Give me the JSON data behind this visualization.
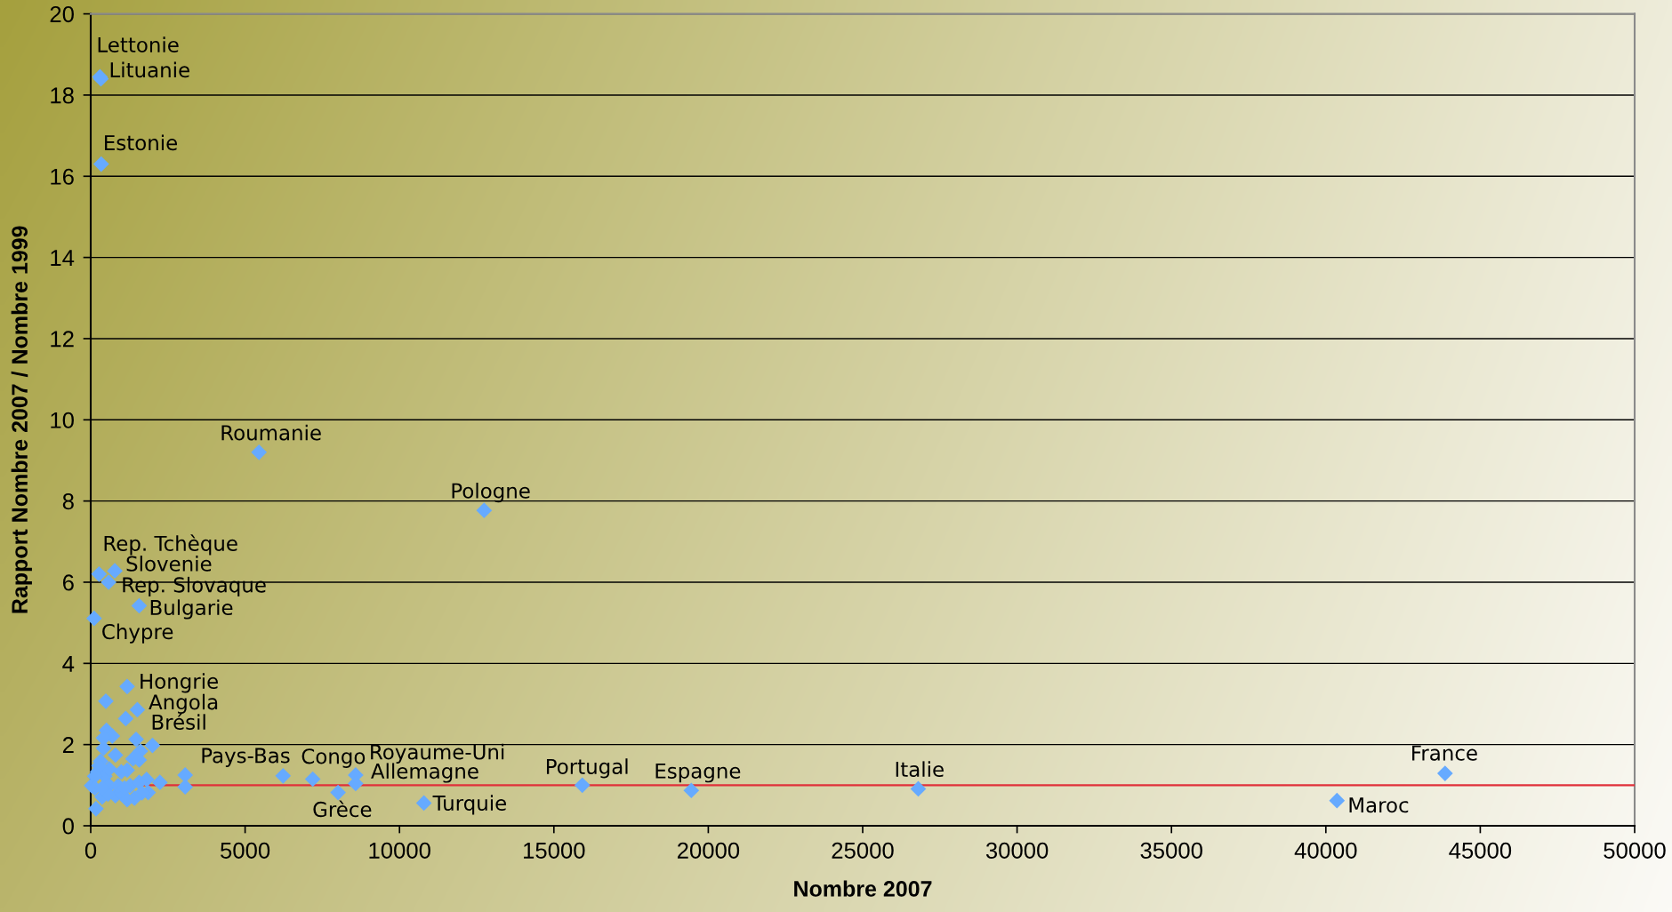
{
  "chart_data": {
    "type": "scatter",
    "xlabel": "Nombre 2007",
    "ylabel": "Rapport Nombre 2007 / Nombre 1999",
    "x": [
      300,
      330,
      340,
      5450,
      12740,
      270,
      780,
      580,
      1570,
      110,
      1180,
      490,
      1510,
      3060,
      6230,
      8580,
      8580,
      8010,
      10790,
      15920,
      19450,
      26800,
      40360,
      43860,
      1134,
      510,
      700,
      415,
      1470,
      2000,
      1610,
      415,
      800,
      1370,
      1570,
      320,
      2240,
      1860,
      1810,
      1420,
      170,
      30,
      370,
      800,
      990,
      220,
      460,
      600,
      270,
      990,
      1180,
      130,
      600,
      890,
      1280,
      1570,
      1180,
      1660,
      560,
      3060,
      7190,
      135,
      374,
      1094
    ],
    "values": [
      18.45,
      18.4,
      16.3,
      9.2,
      7.77,
      6.2,
      6.28,
      6.0,
      5.42,
      5.11,
      3.43,
      3.07,
      2.86,
      1.25,
      1.23,
      1.25,
      1.04,
      0.82,
      0.56,
      1.0,
      0.87,
      0.91,
      0.62,
      1.29,
      2.64,
      2.35,
      2.21,
      2.16,
      2.13,
      1.98,
      1.84,
      1.91,
      1.74,
      1.65,
      1.62,
      1.59,
      1.07,
      0.82,
      1.14,
      0.68,
      0.42,
      0.99,
      0.71,
      0.74,
      0.81,
      1.33,
      1.22,
      1.4,
      1.48,
      1.33,
      1.37,
      1.22,
      0.99,
      0.99,
      0.99,
      1.07,
      0.64,
      0.81,
      0.78,
      0.96,
      1.15,
      0.93,
      0.93,
      0.93
    ],
    "color": "#66aaff",
    "marker": "diamond",
    "xlim": [
      0,
      50000
    ],
    "xticks": [
      0,
      5000,
      10000,
      15000,
      20000,
      25000,
      30000,
      35000,
      40000,
      45000,
      50000
    ],
    "ylim": [
      0,
      20
    ],
    "yticks": [
      0,
      2,
      4,
      6,
      8,
      10,
      12,
      14,
      16,
      18,
      20
    ],
    "grid": "y",
    "ref_lines": [
      {
        "axis": "y",
        "value": 1,
        "color": "#e0303a"
      }
    ],
    "annotations": [
      {
        "text": "Lettonie",
        "x": 300,
        "y": 18.45
      },
      {
        "text": "Lituanie",
        "x": 330,
        "y": 18.4
      },
      {
        "text": "Estonie",
        "x": 340,
        "y": 16.3
      },
      {
        "text": "Roumanie",
        "x": 5450,
        "y": 9.2
      },
      {
        "text": "Pologne",
        "x": 12740,
        "y": 7.77
      },
      {
        "text": "Rep. Tchèque",
        "x": 270,
        "y": 6.2
      },
      {
        "text": "Slovenie",
        "x": 780,
        "y": 6.28
      },
      {
        "text": "Rep. Slovaque",
        "x": 580,
        "y": 6.0
      },
      {
        "text": "Bulgarie",
        "x": 1570,
        "y": 5.42
      },
      {
        "text": "Chypre",
        "x": 110,
        "y": 5.11
      },
      {
        "text": "Hongrie",
        "x": 1180,
        "y": 3.43
      },
      {
        "text": "Angola",
        "x": 490,
        "y": 3.07
      },
      {
        "text": "Brésil",
        "x": 1510,
        "y": 2.86
      },
      {
        "text": "Pays-Bas",
        "x": 3060,
        "y": 1.25
      },
      {
        "text": "Congo",
        "x": 6230,
        "y": 1.23
      },
      {
        "text": "Royaume-Uni",
        "x": 8580,
        "y": 1.25
      },
      {
        "text": "Allemagne",
        "x": 8580,
        "y": 1.04
      },
      {
        "text": "Grèce",
        "x": 8010,
        "y": 0.82
      },
      {
        "text": "Turquie",
        "x": 10790,
        "y": 0.56
      },
      {
        "text": "Portugal",
        "x": 15920,
        "y": 1.0
      },
      {
        "text": "Espagne",
        "x": 19450,
        "y": 0.87
      },
      {
        "text": "Italie",
        "x": 26800,
        "y": 0.91
      },
      {
        "text": "Maroc",
        "x": 40360,
        "y": 0.62
      },
      {
        "text": "France",
        "x": 43860,
        "y": 1.29
      }
    ]
  }
}
